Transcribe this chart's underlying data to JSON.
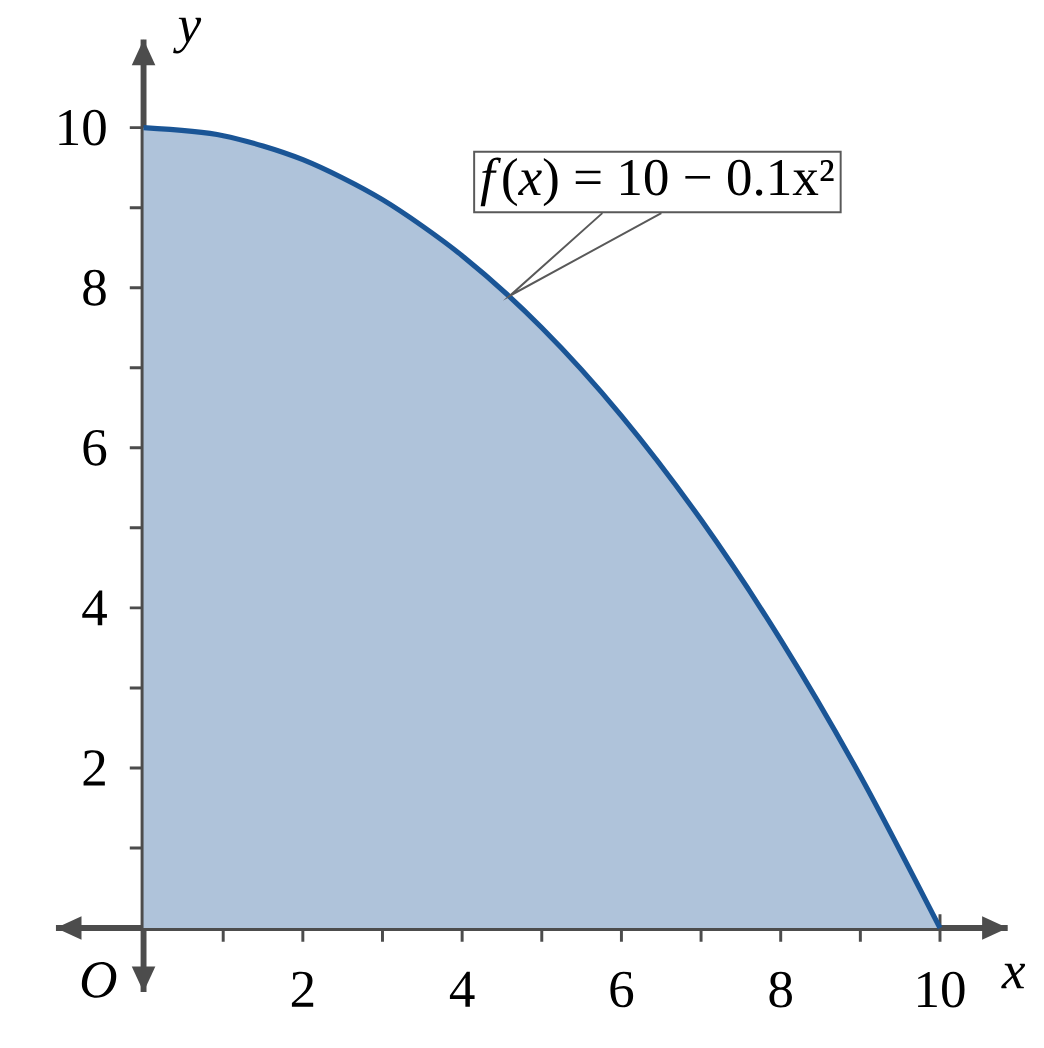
{
  "chart_data": {
    "type": "area",
    "x": [
      0,
      1,
      2,
      3,
      4,
      5,
      6,
      7,
      8,
      9,
      10
    ],
    "series": [
      {
        "color": "#1a5596",
        "values": [
          10,
          9.9,
          9.6,
          9.1,
          8.4,
          7.5,
          6.4,
          5.1,
          3.6,
          1.9,
          0
        ]
      }
    ],
    "xlabel": "x",
    "ylabel": "y",
    "xlim": [
      -1.1,
      10.85
    ],
    "ylim": [
      -0.8,
      11.1
    ],
    "xticks": [
      {
        "value": 1,
        "label": null
      },
      2,
      {
        "value": 3,
        "label": null
      },
      4,
      {
        "value": 5,
        "label": null
      },
      6,
      {
        "value": 7,
        "label": null
      },
      8,
      {
        "value": 9,
        "label": null
      },
      10
    ],
    "yticks": [
      {
        "value": 1,
        "label": null
      },
      2,
      {
        "value": 3,
        "label": null
      },
      4,
      {
        "value": 5,
        "label": null
      },
      6,
      {
        "value": 7,
        "label": null
      },
      8,
      {
        "value": 9,
        "label": null
      },
      10
    ],
    "annotations": [
      "O",
      {
        "text": "*f*(*x*) = 10 − 0.1x²",
        "x": 4.6,
        "y": 7.9
      }
    ],
    "grid": false
  }
}
